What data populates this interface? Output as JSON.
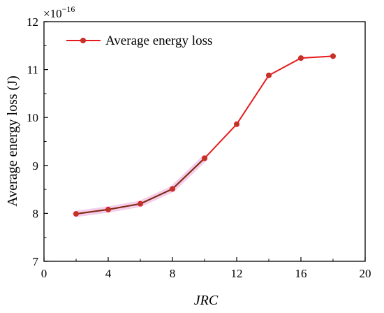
{
  "chart_data": {
    "type": "line",
    "xlabel": "JRC",
    "ylabel": "Average energy loss (J)",
    "y_multiplier": {
      "base": "×10",
      "exponent": "−16"
    },
    "xlim": [
      0,
      20
    ],
    "ylim": [
      7,
      12
    ],
    "x_ticks": [
      "0",
      "4",
      "8",
      "12",
      "16",
      "20"
    ],
    "y_ticks": [
      "7",
      "8",
      "9",
      "10",
      "11",
      "12"
    ],
    "grid": false,
    "legend_position": "top-left",
    "series": [
      {
        "name": "Average energy loss",
        "color": "#e8191c",
        "marker_fill": "#b53a2a",
        "x": [
          2,
          4,
          6,
          8,
          10,
          12,
          14,
          16,
          18
        ],
        "y": [
          7.99,
          8.08,
          8.2,
          8.51,
          9.15,
          9.86,
          10.88,
          11.24,
          11.28
        ]
      }
    ],
    "highlight": {
      "x_range": [
        2,
        10
      ],
      "line_color": "#7a2e16",
      "glow_color": "#f2c6e6"
    }
  }
}
